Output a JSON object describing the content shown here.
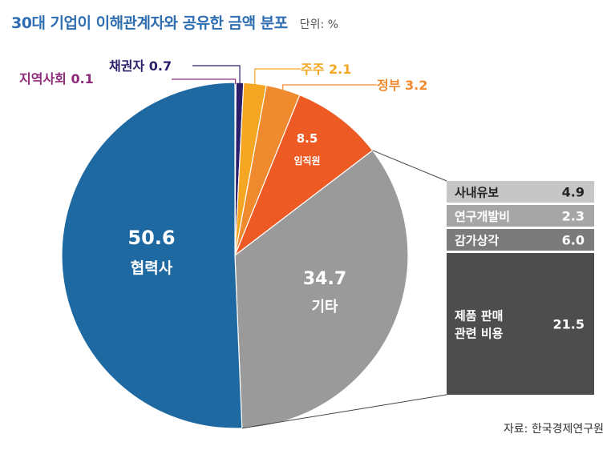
{
  "chart_data": {
    "type": "pie",
    "title": "30대 기업이 이해관계자와 공유한 금액 분포",
    "unit": "단위: %",
    "source": "자료: 한국경제연구원",
    "slices": [
      {
        "label": "지역사회",
        "value": 0.1,
        "display": "0.1",
        "color": "#8e2a7a",
        "label_color": "#8e2a7a"
      },
      {
        "label": "채권자",
        "value": 0.7,
        "display": "0.7",
        "color": "#2b1f6b",
        "label_color": "#2b1f6b"
      },
      {
        "label": "주주",
        "value": 2.1,
        "display": "2.1",
        "color": "#f5a623",
        "label_color": "#f5a623"
      },
      {
        "label": "정부",
        "value": 3.2,
        "display": "3.2",
        "color": "#f08a2e",
        "label_color": "#f08a2e"
      },
      {
        "label": "임직원",
        "value": 8.5,
        "display": "8.5",
        "color": "#ee5a24",
        "label_color": "#ffffff"
      },
      {
        "label": "기타",
        "value": 34.7,
        "display": "34.7",
        "color": "#9a9a9a",
        "label_color": "#ffffff"
      },
      {
        "label": "협력사",
        "value": 50.6,
        "display": "50.6",
        "color": "#1f69a2",
        "label_color": "#ffffff"
      }
    ],
    "breakdown": {
      "parent": "기타",
      "items": [
        {
          "label": "사내유보",
          "value": 4.9,
          "display": "4.9",
          "color": "#c6c6c6",
          "text_color": "#222222"
        },
        {
          "label": "연구개발비",
          "value": 2.3,
          "display": "2.3",
          "color": "#a6a6a6",
          "text_color": "#ffffff"
        },
        {
          "label": "감가상각",
          "value": 6.0,
          "display": "6.0",
          "color": "#7b7b7b",
          "text_color": "#ffffff"
        },
        {
          "label": "제품 판매\n관련 비용",
          "value": 21.5,
          "display": "21.5",
          "color": "#4d4d4d",
          "text_color": "#ffffff"
        }
      ]
    }
  }
}
